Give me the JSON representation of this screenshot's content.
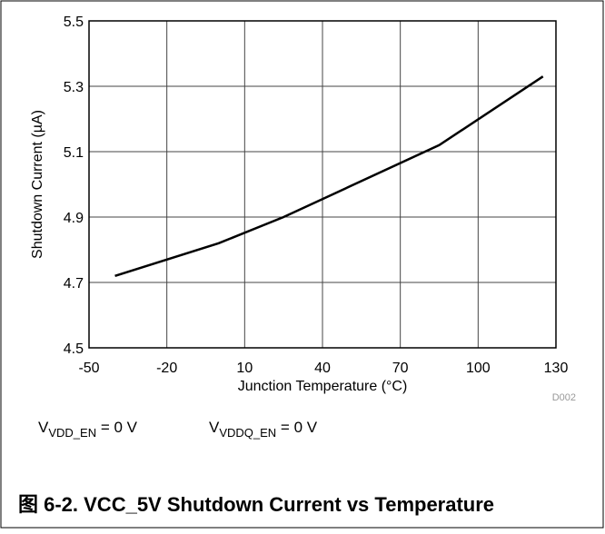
{
  "chart_data": {
    "type": "line",
    "title": "图 6-2. VCC_5V Shutdown Current vs Temperature",
    "x_label": "Junction Temperature (°C)",
    "y_label": "Shutdown Current (µA)",
    "figure_id": "D002",
    "annotations": [
      {
        "base": "V",
        "sub": "VDD_EN",
        "rest": " = 0 V"
      },
      {
        "base": "V",
        "sub": "VDDQ_EN",
        "rest": " = 0 V"
      }
    ],
    "x": [
      -40,
      0,
      25,
      85,
      125
    ],
    "series": [
      {
        "color": "#000000",
        "values": [
          4.72,
          4.82,
          4.9,
          5.12,
          5.33
        ]
      }
    ],
    "xlim": [
      -50,
      130
    ],
    "xticks": [
      -50,
      -20,
      10,
      40,
      70,
      100,
      130
    ],
    "ylim": [
      4.5,
      5.5
    ],
    "yticks": [
      4.5,
      4.7,
      4.9,
      5.1,
      5.3,
      5.5
    ],
    "grid": true
  }
}
